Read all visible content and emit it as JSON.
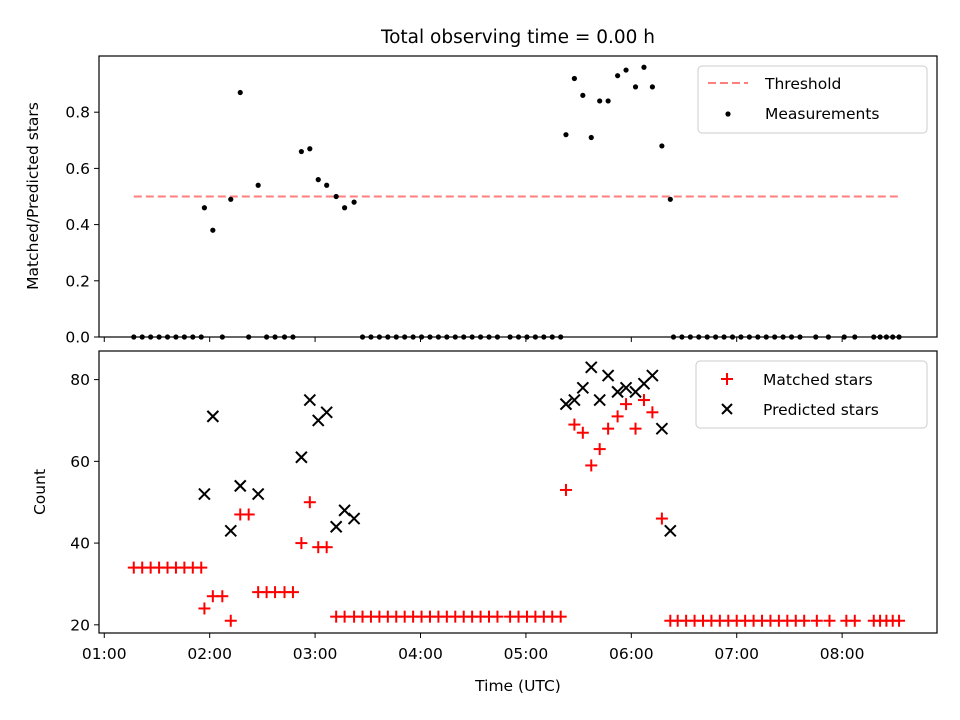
{
  "figure": {
    "title": "Total observing time = 0.00 h"
  },
  "chart_data": [
    {
      "type": "scatter",
      "panel": "top",
      "ylabel": "Matched/Predicted stars",
      "ylim": [
        0,
        1.0
      ],
      "yticks": [
        0.0,
        0.2,
        0.4,
        0.6,
        0.8
      ],
      "ytick_labels": [
        "0.0",
        "0.2",
        "0.4",
        "0.6",
        "0.8"
      ],
      "xlim": [
        0.95,
        8.9
      ],
      "legend": {
        "placement": "top-right",
        "entries": [
          "Threshold",
          "Measurements"
        ]
      },
      "threshold": {
        "name": "Threshold",
        "value": 0.5,
        "x_range": [
          1.28,
          8.55
        ],
        "color": "#ff7f7f",
        "style": "dashed"
      },
      "series": [
        {
          "name": "Measurements",
          "color": "#000000",
          "marker": "dot",
          "points": [
            [
              1.28,
              0
            ],
            [
              1.36,
              0
            ],
            [
              1.44,
              0
            ],
            [
              1.52,
              0
            ],
            [
              1.6,
              0
            ],
            [
              1.68,
              0
            ],
            [
              1.76,
              0
            ],
            [
              1.84,
              0
            ],
            [
              1.92,
              0
            ],
            [
              1.95,
              0.46
            ],
            [
              2.03,
              0.38
            ],
            [
              2.12,
              0
            ],
            [
              2.2,
              0.49
            ],
            [
              2.29,
              0.87
            ],
            [
              2.37,
              0
            ],
            [
              2.46,
              0.54
            ],
            [
              2.54,
              0
            ],
            [
              2.62,
              0
            ],
            [
              2.71,
              0
            ],
            [
              2.79,
              0
            ],
            [
              2.87,
              0.66
            ],
            [
              2.95,
              0.67
            ],
            [
              3.03,
              0.56
            ],
            [
              3.11,
              0.54
            ],
            [
              3.2,
              0.5
            ],
            [
              3.28,
              0.46
            ],
            [
              3.37,
              0.48
            ],
            [
              3.45,
              0
            ],
            [
              3.53,
              0
            ],
            [
              3.61,
              0
            ],
            [
              3.69,
              0
            ],
            [
              3.77,
              0
            ],
            [
              3.85,
              0
            ],
            [
              3.93,
              0
            ],
            [
              4.01,
              0
            ],
            [
              4.09,
              0
            ],
            [
              4.17,
              0
            ],
            [
              4.25,
              0
            ],
            [
              4.33,
              0
            ],
            [
              4.41,
              0
            ],
            [
              4.49,
              0
            ],
            [
              4.57,
              0
            ],
            [
              4.65,
              0
            ],
            [
              4.73,
              0
            ],
            [
              4.85,
              0
            ],
            [
              4.93,
              0
            ],
            [
              5.01,
              0
            ],
            [
              5.09,
              0
            ],
            [
              5.17,
              0
            ],
            [
              5.25,
              0
            ],
            [
              5.33,
              0
            ],
            [
              5.38,
              0.72
            ],
            [
              5.46,
              0.92
            ],
            [
              5.54,
              0.86
            ],
            [
              5.62,
              0.71
            ],
            [
              5.7,
              0.84
            ],
            [
              5.78,
              0.84
            ],
            [
              5.87,
              0.93
            ],
            [
              5.95,
              0.95
            ],
            [
              6.04,
              0.89
            ],
            [
              6.12,
              0.96
            ],
            [
              6.2,
              0.89
            ],
            [
              6.29,
              0.68
            ],
            [
              6.37,
              0.49
            ],
            [
              6.4,
              0
            ],
            [
              6.48,
              0
            ],
            [
              6.56,
              0
            ],
            [
              6.64,
              0
            ],
            [
              6.72,
              0
            ],
            [
              6.8,
              0
            ],
            [
              6.88,
              0
            ],
            [
              6.96,
              0
            ],
            [
              7.04,
              0
            ],
            [
              7.12,
              0
            ],
            [
              7.2,
              0
            ],
            [
              7.28,
              0
            ],
            [
              7.36,
              0
            ],
            [
              7.44,
              0
            ],
            [
              7.52,
              0
            ],
            [
              7.6,
              0
            ],
            [
              7.75,
              0
            ],
            [
              7.87,
              0
            ],
            [
              8.02,
              0
            ],
            [
              8.12,
              0
            ],
            [
              8.3,
              0
            ],
            [
              8.36,
              0
            ],
            [
              8.42,
              0
            ],
            [
              8.48,
              0
            ],
            [
              8.54,
              0
            ]
          ]
        }
      ]
    },
    {
      "type": "scatter",
      "panel": "bottom",
      "xlabel": "Time (UTC)",
      "ylabel": "Count",
      "ylim": [
        18,
        87
      ],
      "yticks": [
        20,
        40,
        60,
        80
      ],
      "ytick_labels": [
        "20",
        "40",
        "60",
        "80"
      ],
      "xlim": [
        0.95,
        8.9
      ],
      "xticks": [
        1,
        2,
        3,
        4,
        5,
        6,
        7,
        8
      ],
      "xtick_labels": [
        "01:00",
        "02:00",
        "03:00",
        "04:00",
        "05:00",
        "06:00",
        "07:00",
        "08:00"
      ],
      "legend": {
        "placement": "top-right",
        "entries": [
          "Matched stars",
          "Predicted stars"
        ]
      },
      "series": [
        {
          "name": "Matched stars",
          "color": "#ff0000",
          "marker": "plus",
          "points": [
            [
              1.28,
              34
            ],
            [
              1.36,
              34
            ],
            [
              1.44,
              34
            ],
            [
              1.52,
              34
            ],
            [
              1.6,
              34
            ],
            [
              1.68,
              34
            ],
            [
              1.76,
              34
            ],
            [
              1.84,
              34
            ],
            [
              1.92,
              34
            ],
            [
              1.95,
              24
            ],
            [
              2.03,
              27
            ],
            [
              2.12,
              27
            ],
            [
              2.2,
              21
            ],
            [
              2.29,
              47
            ],
            [
              2.37,
              47
            ],
            [
              2.46,
              28
            ],
            [
              2.54,
              28
            ],
            [
              2.62,
              28
            ],
            [
              2.71,
              28
            ],
            [
              2.79,
              28
            ],
            [
              2.87,
              40
            ],
            [
              2.95,
              50
            ],
            [
              3.03,
              39
            ],
            [
              3.11,
              39
            ],
            [
              3.2,
              22
            ],
            [
              3.28,
              22
            ],
            [
              3.37,
              22
            ],
            [
              3.45,
              22
            ],
            [
              3.53,
              22
            ],
            [
              3.61,
              22
            ],
            [
              3.69,
              22
            ],
            [
              3.77,
              22
            ],
            [
              3.85,
              22
            ],
            [
              3.93,
              22
            ],
            [
              4.01,
              22
            ],
            [
              4.09,
              22
            ],
            [
              4.17,
              22
            ],
            [
              4.25,
              22
            ],
            [
              4.33,
              22
            ],
            [
              4.41,
              22
            ],
            [
              4.49,
              22
            ],
            [
              4.57,
              22
            ],
            [
              4.65,
              22
            ],
            [
              4.73,
              22
            ],
            [
              4.85,
              22
            ],
            [
              4.93,
              22
            ],
            [
              5.01,
              22
            ],
            [
              5.09,
              22
            ],
            [
              5.17,
              22
            ],
            [
              5.25,
              22
            ],
            [
              5.33,
              22
            ],
            [
              5.38,
              53
            ],
            [
              5.46,
              69
            ],
            [
              5.54,
              67
            ],
            [
              5.62,
              59
            ],
            [
              5.7,
              63
            ],
            [
              5.78,
              68
            ],
            [
              5.87,
              71
            ],
            [
              5.95,
              74
            ],
            [
              6.04,
              68
            ],
            [
              6.12,
              75
            ],
            [
              6.2,
              72
            ],
            [
              6.29,
              46
            ],
            [
              6.37,
              21
            ],
            [
              6.44,
              21
            ],
            [
              6.52,
              21
            ],
            [
              6.6,
              21
            ],
            [
              6.68,
              21
            ],
            [
              6.76,
              21
            ],
            [
              6.84,
              21
            ],
            [
              6.92,
              21
            ],
            [
              7.0,
              21
            ],
            [
              7.08,
              21
            ],
            [
              7.16,
              21
            ],
            [
              7.24,
              21
            ],
            [
              7.32,
              21
            ],
            [
              7.4,
              21
            ],
            [
              7.48,
              21
            ],
            [
              7.56,
              21
            ],
            [
              7.64,
              21
            ],
            [
              7.76,
              21
            ],
            [
              7.88,
              21
            ],
            [
              8.04,
              21
            ],
            [
              8.12,
              21
            ],
            [
              8.3,
              21
            ],
            [
              8.36,
              21
            ],
            [
              8.42,
              21
            ],
            [
              8.48,
              21
            ],
            [
              8.54,
              21
            ]
          ]
        },
        {
          "name": "Predicted stars",
          "color": "#000000",
          "marker": "x",
          "points": [
            [
              1.95,
              52
            ],
            [
              2.03,
              71
            ],
            [
              2.2,
              43
            ],
            [
              2.29,
              54
            ],
            [
              2.46,
              52
            ],
            [
              2.87,
              61
            ],
            [
              2.95,
              75
            ],
            [
              3.03,
              70
            ],
            [
              3.11,
              72
            ],
            [
              3.2,
              44
            ],
            [
              3.28,
              48
            ],
            [
              3.37,
              46
            ],
            [
              5.38,
              74
            ],
            [
              5.46,
              75
            ],
            [
              5.54,
              78
            ],
            [
              5.62,
              83
            ],
            [
              5.7,
              75
            ],
            [
              5.78,
              81
            ],
            [
              5.87,
              77
            ],
            [
              5.95,
              78
            ],
            [
              6.04,
              77
            ],
            [
              6.12,
              79
            ],
            [
              6.2,
              81
            ],
            [
              6.29,
              68
            ],
            [
              6.37,
              43
            ]
          ]
        }
      ]
    }
  ]
}
